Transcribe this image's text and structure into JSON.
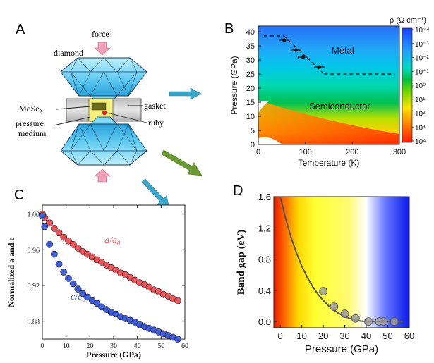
{
  "panels": {
    "a": {
      "letter": "A",
      "force": "force",
      "diamond": "diamond",
      "mose2": "MoSe",
      "mose2_sub": "2",
      "gasket": "gasket",
      "ruby": "ruby",
      "pressure_medium_1": "pressure",
      "pressure_medium_2": "medium"
    },
    "b": {
      "letter": "B",
      "metal": "Metal",
      "semiconductor": "Semiconductor",
      "colorbar_title": "ρ (Ω cm⁻¹)",
      "colorbar_ticks": [
        "10⁻⁴",
        "10⁻³",
        "10⁻²",
        "10⁻¹",
        "10⁰",
        "10¹",
        "10²",
        "10³",
        "10⁴"
      ]
    },
    "c": {
      "letter": "C",
      "label_a": "a/a",
      "label_a_sub": "0",
      "label_c": "c/c",
      "label_c_sub": "0"
    },
    "d": {
      "letter": "D"
    }
  },
  "colors": {
    "series_a": "#e8565b",
    "series_c": "#3f5bd6",
    "arrow_teal": "#3aa7c8",
    "arrow_green": "#6a9a32",
    "down_arrow": "#f0a0b8"
  },
  "chart_data": [
    {
      "panel": "B",
      "type": "heatmap",
      "xlabel": "Temperature (K)",
      "ylabel": "Pressure (GPa)",
      "xlim": [
        0,
        300
      ],
      "ylim": [
        0,
        42
      ],
      "xticks": [
        "0",
        "100",
        "200",
        "300"
      ],
      "yticks": [
        "0",
        "5",
        "10",
        "15",
        "20",
        "25",
        "30",
        "35",
        "40"
      ],
      "boundary": {
        "x": [
          55,
          80,
          95,
          130
        ],
        "y": [
          37.0,
          33.5,
          31.0,
          27.5
        ],
        "dashed_upper": 38.5,
        "dashed_lower": 25
      }
    },
    {
      "panel": "C",
      "type": "scatter",
      "xlabel": "Pressure (GPa)",
      "ylabel": "Normalized a and c",
      "xlim": [
        0,
        60
      ],
      "ylim": [
        0.86,
        1.01
      ],
      "xticks": [
        "0",
        "10",
        "20",
        "30",
        "40",
        "50",
        "60"
      ],
      "yticks": [
        "0.88",
        "0.92",
        "0.96",
        "1.00"
      ],
      "series": [
        {
          "name": "a/a0",
          "x": [
            0,
            1,
            3,
            5,
            7,
            9,
            11,
            13,
            15,
            17,
            19,
            21,
            23,
            25,
            27,
            29,
            31,
            33,
            35,
            37,
            39,
            41,
            43,
            45,
            47,
            49,
            51,
            53,
            55,
            57
          ],
          "y": [
            1.0,
            0.996,
            0.99,
            0.984,
            0.979,
            0.974,
            0.97,
            0.966,
            0.962,
            0.958,
            0.955,
            0.952,
            0.949,
            0.946,
            0.943,
            0.94,
            0.937,
            0.934,
            0.932,
            0.929,
            0.926,
            0.923,
            0.921,
            0.918,
            0.915,
            0.913,
            0.91,
            0.908,
            0.905,
            0.903
          ]
        },
        {
          "name": "c/c0",
          "x": [
            0,
            1,
            3,
            5,
            7,
            9,
            11,
            13,
            15,
            17,
            19,
            21,
            23,
            25,
            27,
            29,
            31,
            33,
            35,
            37,
            39,
            41,
            43,
            45,
            47,
            49,
            51,
            53,
            55,
            57
          ],
          "y": [
            0.998,
            0.986,
            0.966,
            0.955,
            0.944,
            0.935,
            0.928,
            0.922,
            0.916,
            0.911,
            0.907,
            0.903,
            0.9,
            0.896,
            0.893,
            0.89,
            0.888,
            0.885,
            0.883,
            0.881,
            0.879,
            0.876,
            0.874,
            0.872,
            0.87,
            0.868,
            0.866,
            0.864,
            0.862,
            0.86
          ]
        }
      ]
    },
    {
      "panel": "D",
      "type": "scatter",
      "xlabel": "Pressure (GPa)",
      "ylabel": "Band gap (eV)",
      "xlim": [
        -3,
        60
      ],
      "ylim": [
        -0.08,
        1.6
      ],
      "xticks": [
        "0",
        "10",
        "20",
        "30",
        "40",
        "50",
        "60"
      ],
      "yticks": [
        "0.0",
        "0.4",
        "0.8",
        "1.2",
        "1.6"
      ],
      "points": {
        "x": [
          20,
          25,
          30,
          35,
          41,
          46,
          48,
          53
        ],
        "y": [
          0.39,
          0.19,
          0.1,
          0.04,
          0.0,
          0.0,
          0.0,
          0.0
        ]
      },
      "fit": {
        "x": [
          0,
          2.5,
          5,
          7.5,
          10,
          12.5,
          15,
          17.5,
          20,
          22.5,
          25,
          27.5,
          30,
          32.5,
          35,
          37.5,
          40
        ],
        "y": [
          1.6,
          1.32,
          1.08,
          0.88,
          0.71,
          0.57,
          0.45,
          0.35,
          0.27,
          0.2,
          0.145,
          0.1,
          0.065,
          0.038,
          0.018,
          0.006,
          0.0
        ]
      }
    }
  ]
}
